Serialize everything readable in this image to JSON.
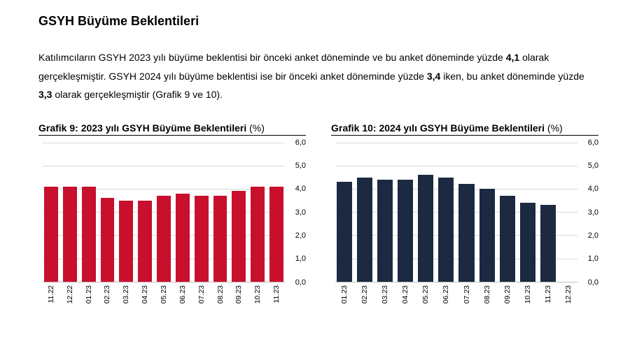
{
  "section_title": "GSYH Büyüme Beklentileri",
  "paragraph_parts": [
    "Katılımcıların GSYH 2023 yılı büyüme beklentisi bir önceki anket döneminde ve bu anket döneminde yüzde ",
    "4,1",
    " olarak gerçekleşmiştir. GSYH 2024 yılı büyüme beklentisi ise bir önceki anket döneminde yüzde ",
    "3,4",
    " iken, bu anket döneminde yüzde ",
    "3,3",
    " olarak gerçekleşmiştir (Grafik 9 ve 10)."
  ],
  "chart9": {
    "type": "bar",
    "title_bold": "Grafik 9: 2023 yılı GSYH Büyüme Beklentileri",
    "title_suffix": " (%)",
    "categories": [
      "11.22",
      "12.22",
      "01.23",
      "02.23",
      "03.23",
      "04.23",
      "05.23",
      "06.23",
      "07.23",
      "08.23",
      "09.23",
      "10.23",
      "11.23"
    ],
    "values": [
      4.1,
      4.1,
      4.1,
      3.6,
      3.5,
      3.5,
      3.7,
      3.8,
      3.7,
      3.7,
      3.9,
      4.1,
      4.1
    ],
    "bar_color": "#c8102e",
    "ylim": [
      0,
      6
    ],
    "ytick_step": 1,
    "y_tick_labels": [
      "0,0",
      "1,0",
      "2,0",
      "3,0",
      "4,0",
      "5,0",
      "6,0"
    ],
    "grid_color": "#d9d9d9",
    "background_color": "#ffffff",
    "label_fontsize": 11
  },
  "chart10": {
    "type": "bar",
    "title_bold": "Grafik 10: 2024 yılı GSYH Büyüme Beklentileri",
    "title_suffix": " (%)",
    "categories": [
      "01.23",
      "02.23",
      "03.23",
      "04.23",
      "05.23",
      "06.23",
      "07.23",
      "08.23",
      "09.23",
      "10.23",
      "11.23",
      "12.23"
    ],
    "values": [
      4.3,
      4.5,
      4.4,
      4.4,
      4.6,
      4.5,
      4.2,
      4.0,
      3.7,
      3.4,
      3.3,
      0
    ],
    "bar_color": "#1b2a41",
    "ylim": [
      0,
      6
    ],
    "ytick_step": 1,
    "y_tick_labels": [
      "0,0",
      "1,0",
      "2,0",
      "3,0",
      "4,0",
      "5,0",
      "6,0"
    ],
    "grid_color": "#d9d9d9",
    "background_color": "#ffffff",
    "label_fontsize": 11
  }
}
